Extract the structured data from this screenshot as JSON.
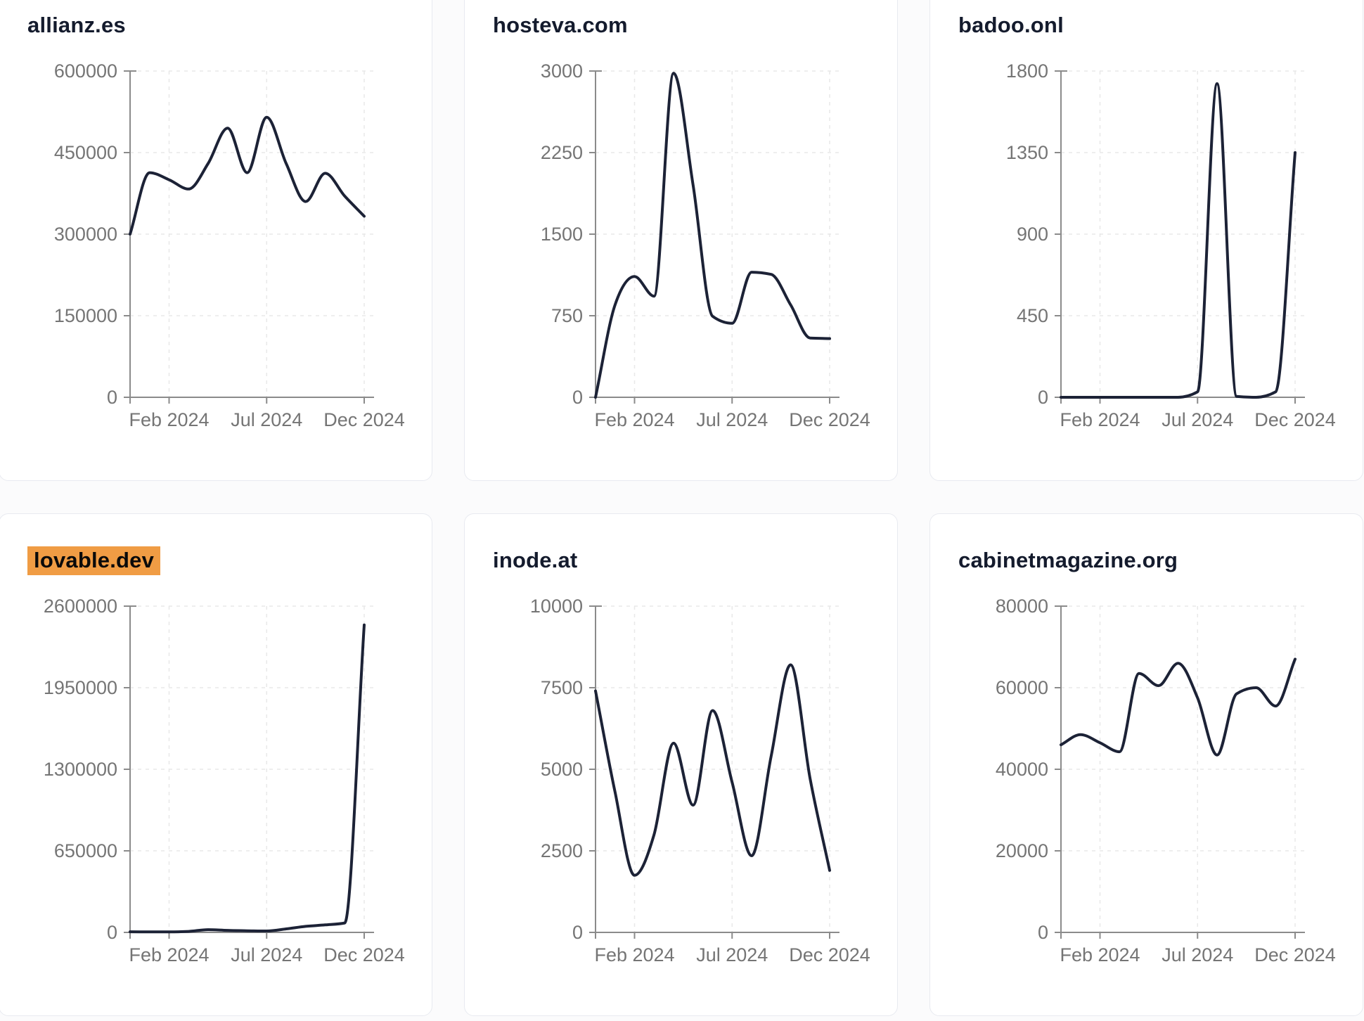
{
  "page": {
    "background": "#fbfbfc"
  },
  "theme": {
    "card_background": "#ffffff",
    "card_border": "#e8eaf0",
    "title_color": "#141b2d",
    "highlight_background": "#f09c44",
    "highlight_text": "#0a0a0a",
    "line_color": "#1c2236",
    "axis_color": "#8b8b8b",
    "tick_label_color": "#757575",
    "grid_color": "#e8e8e8"
  },
  "x_axis": {
    "tick_labels": [
      "Feb 2024",
      "Jul 2024",
      "Dec 2024"
    ]
  },
  "chart_data": [
    {
      "type": "line",
      "title": "allianz.es",
      "highlighted": false,
      "x": [
        "Dec 2023",
        "Jan 2024",
        "Feb 2024",
        "Mar 2024",
        "Apr 2024",
        "May 2024",
        "Jun 2024",
        "Jul 2024",
        "Aug 2024",
        "Sep 2024",
        "Oct 2024",
        "Nov 2024",
        "Dec 2024"
      ],
      "values": [
        300000,
        413000,
        400000,
        383000,
        430000,
        495000,
        413000,
        515000,
        430000,
        360000,
        412000,
        370000,
        333000
      ],
      "ylim": [
        0,
        600000
      ],
      "y_ticks": [
        0,
        150000,
        300000,
        450000,
        600000
      ],
      "x_tick_labels": [
        "Feb 2024",
        "Jul 2024",
        "Dec 2024"
      ],
      "grid": true,
      "legend": null
    },
    {
      "type": "line",
      "title": "hosteva.com",
      "highlighted": false,
      "x": [
        "Dec 2023",
        "Jan 2024",
        "Feb 2024",
        "Mar 2024",
        "Apr 2024",
        "May 2024",
        "Jun 2024",
        "Jul 2024",
        "Aug 2024",
        "Sep 2024",
        "Oct 2024",
        "Nov 2024",
        "Dec 2024"
      ],
      "values": [
        0,
        850,
        1110,
        930,
        2980,
        1950,
        745,
        680,
        1150,
        1130,
        850,
        545,
        540
      ],
      "ylim": [
        0,
        3000
      ],
      "y_ticks": [
        0,
        750,
        1500,
        2250,
        3000
      ],
      "x_tick_labels": [
        "Feb 2024",
        "Jul 2024",
        "Dec 2024"
      ],
      "grid": true,
      "legend": null
    },
    {
      "type": "line",
      "title": "badoo.onl",
      "highlighted": false,
      "x": [
        "Dec 2023",
        "Jan 2024",
        "Feb 2024",
        "Mar 2024",
        "Apr 2024",
        "May 2024",
        "Jun 2024",
        "Jul 2024",
        "Aug 2024",
        "Sep 2024",
        "Oct 2024",
        "Nov 2024",
        "Dec 2024"
      ],
      "values": [
        0,
        0,
        0,
        0,
        0,
        0,
        0,
        30,
        1730,
        5,
        0,
        30,
        1350
      ],
      "ylim": [
        0,
        1800
      ],
      "y_ticks": [
        0,
        450,
        900,
        1350,
        1800
      ],
      "x_tick_labels": [
        "Feb 2024",
        "Jul 2024",
        "Dec 2024"
      ],
      "grid": true,
      "legend": null
    },
    {
      "type": "line",
      "title": "lovable.dev",
      "highlighted": true,
      "x": [
        "Dec 2023",
        "Jan 2024",
        "Feb 2024",
        "Mar 2024",
        "Apr 2024",
        "May 2024",
        "Jun 2024",
        "Jul 2024",
        "Aug 2024",
        "Sep 2024",
        "Oct 2024",
        "Nov 2024",
        "Dec 2024"
      ],
      "values": [
        5000,
        4000,
        4000,
        8000,
        22000,
        16000,
        13000,
        11000,
        28000,
        48000,
        60000,
        75000,
        2450000
      ],
      "ylim": [
        0,
        2600000
      ],
      "y_ticks": [
        0,
        650000,
        1300000,
        1950000,
        2600000
      ],
      "x_tick_labels": [
        "Feb 2024",
        "Jul 2024",
        "Dec 2024"
      ],
      "grid": true,
      "legend": null
    },
    {
      "type": "line",
      "title": "inode.at",
      "highlighted": false,
      "x": [
        "Dec 2023",
        "Jan 2024",
        "Feb 2024",
        "Mar 2024",
        "Apr 2024",
        "May 2024",
        "Jun 2024",
        "Jul 2024",
        "Aug 2024",
        "Sep 2024",
        "Oct 2024",
        "Nov 2024",
        "Dec 2024"
      ],
      "values": [
        7400,
        4300,
        1750,
        3000,
        5800,
        3900,
        6800,
        4600,
        2350,
        5400,
        8200,
        4700,
        1900
      ],
      "ylim": [
        0,
        10000
      ],
      "y_ticks": [
        0,
        2500,
        5000,
        7500,
        10000
      ],
      "x_tick_labels": [
        "Feb 2024",
        "Jul 2024",
        "Dec 2024"
      ],
      "grid": true,
      "legend": null
    },
    {
      "type": "line",
      "title": "cabinetmagazine.org",
      "highlighted": false,
      "x": [
        "Dec 2023",
        "Jan 2024",
        "Feb 2024",
        "Mar 2024",
        "Apr 2024",
        "May 2024",
        "Jun 2024",
        "Jul 2024",
        "Aug 2024",
        "Sep 2024",
        "Oct 2024",
        "Nov 2024",
        "Dec 2024"
      ],
      "values": [
        46000,
        48500,
        46500,
        44300,
        63500,
        60500,
        66000,
        57500,
        43500,
        58500,
        60000,
        55500,
        67000
      ],
      "ylim": [
        0,
        80000
      ],
      "y_ticks": [
        0,
        20000,
        40000,
        60000,
        80000
      ],
      "x_tick_labels": [
        "Feb 2024",
        "Jul 2024",
        "Dec 2024"
      ],
      "grid": true,
      "legend": null
    }
  ]
}
